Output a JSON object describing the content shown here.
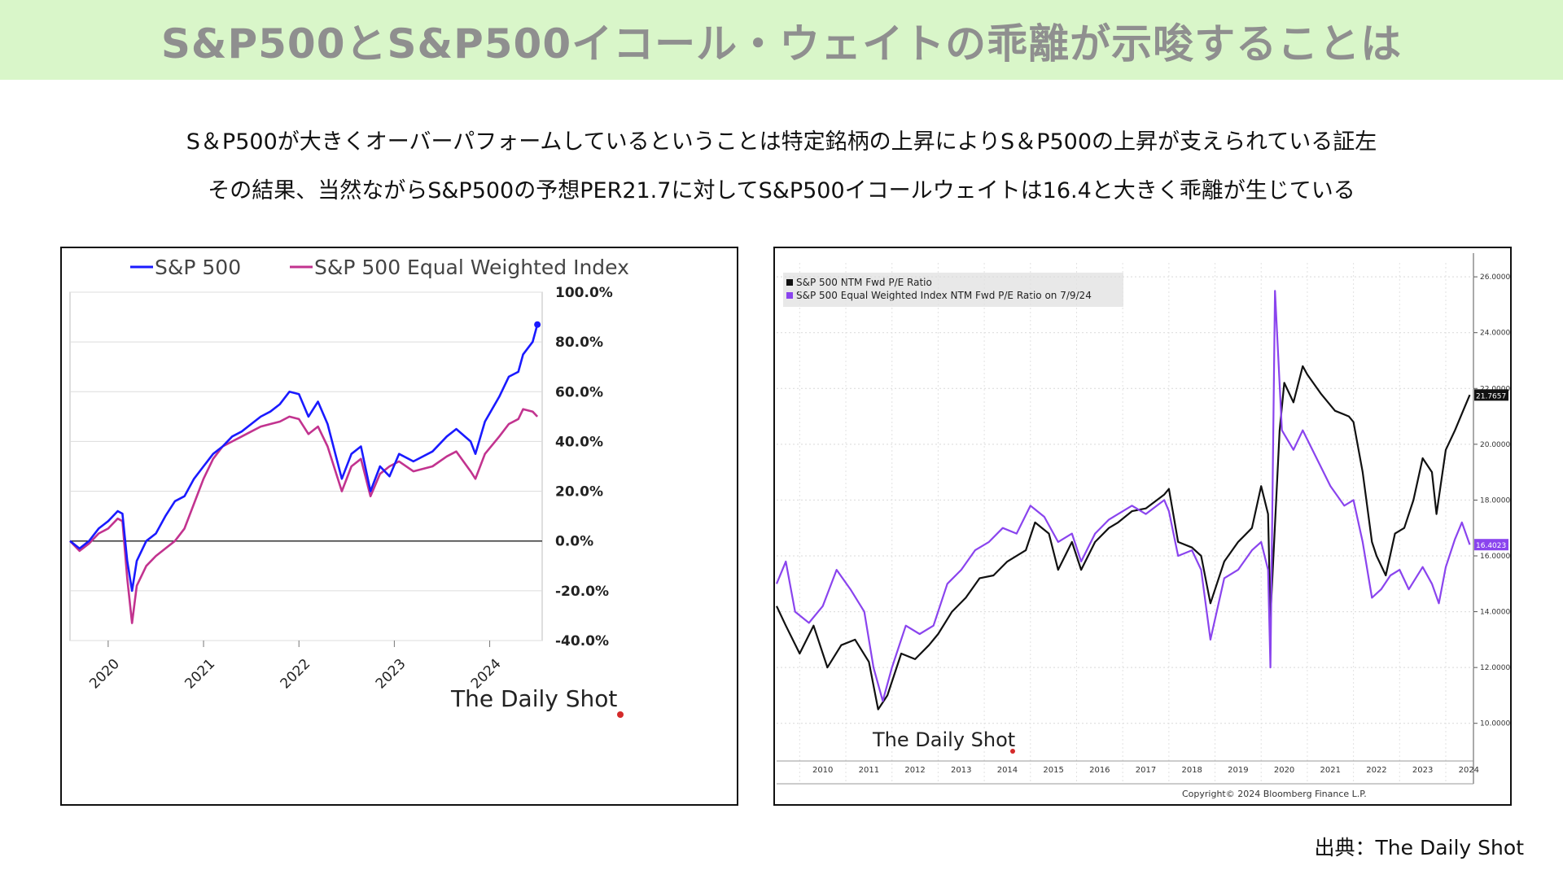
{
  "header": {
    "title": "S&P500とS&P500イコール・ウェイトの乖離が示唆することは"
  },
  "description": {
    "line1": "S＆P500が大きくオーバーパフォームしているということは特定銘柄の上昇によりS＆P500の上昇が支えられている証左",
    "line2": "その結果、当然ながらS&P500の予想PER21.7に対してS&P500イコールウェイトは16.4と大きく乖離が生じている"
  },
  "source": "出典：The Daily Shot",
  "colors": {
    "banner": "#d9f6c9",
    "sp500_left": "#1a1aff",
    "equal_left": "#c2338f",
    "sp500_right": "#111111",
    "equal_right": "#8a44ee"
  },
  "chart_data": [
    {
      "type": "line",
      "watermark": "The Daily Shot",
      "legend_position": "top",
      "grid": true,
      "y_axis_side": "right",
      "yticks": [
        "100.0%",
        "80.0%",
        "60.0%",
        "40.0%",
        "20.0%",
        "0.0%",
        "-20.0%",
        "-40.0%"
      ],
      "ylim": [
        -40,
        100
      ],
      "xlim": [
        2019.6,
        2024.55
      ],
      "xticks": [
        "2020",
        "2021",
        "2022",
        "2023",
        "2024"
      ],
      "series": [
        {
          "name": "S&P 500",
          "color": "#1a1aff",
          "points": [
            [
              2019.6,
              0
            ],
            [
              2019.7,
              -3
            ],
            [
              2019.8,
              0
            ],
            [
              2019.9,
              5
            ],
            [
              2020.0,
              8
            ],
            [
              2020.1,
              12
            ],
            [
              2020.15,
              11
            ],
            [
              2020.2,
              -8
            ],
            [
              2020.25,
              -20
            ],
            [
              2020.3,
              -8
            ],
            [
              2020.4,
              0
            ],
            [
              2020.5,
              3
            ],
            [
              2020.6,
              10
            ],
            [
              2020.7,
              16
            ],
            [
              2020.8,
              18
            ],
            [
              2020.9,
              25
            ],
            [
              2021.0,
              30
            ],
            [
              2021.1,
              35
            ],
            [
              2021.2,
              38
            ],
            [
              2021.3,
              42
            ],
            [
              2021.4,
              44
            ],
            [
              2021.5,
              47
            ],
            [
              2021.6,
              50
            ],
            [
              2021.7,
              52
            ],
            [
              2021.8,
              55
            ],
            [
              2021.9,
              60
            ],
            [
              2022.0,
              59
            ],
            [
              2022.1,
              50
            ],
            [
              2022.2,
              56
            ],
            [
              2022.3,
              47
            ],
            [
              2022.45,
              25
            ],
            [
              2022.55,
              35
            ],
            [
              2022.65,
              38
            ],
            [
              2022.75,
              20
            ],
            [
              2022.85,
              30
            ],
            [
              2022.95,
              26
            ],
            [
              2023.05,
              35
            ],
            [
              2023.2,
              32
            ],
            [
              2023.4,
              36
            ],
            [
              2023.55,
              42
            ],
            [
              2023.65,
              45
            ],
            [
              2023.8,
              40
            ],
            [
              2023.85,
              35
            ],
            [
              2023.95,
              48
            ],
            [
              2024.1,
              58
            ],
            [
              2024.2,
              66
            ],
            [
              2024.3,
              68
            ],
            [
              2024.35,
              75
            ],
            [
              2024.45,
              80
            ],
            [
              2024.5,
              87
            ]
          ]
        },
        {
          "name": "S&P 500 Equal Weighted Index",
          "color": "#c2338f",
          "points": [
            [
              2019.6,
              0
            ],
            [
              2019.7,
              -4
            ],
            [
              2019.8,
              -1
            ],
            [
              2019.9,
              3
            ],
            [
              2020.0,
              5
            ],
            [
              2020.1,
              9
            ],
            [
              2020.15,
              8
            ],
            [
              2020.2,
              -15
            ],
            [
              2020.25,
              -33
            ],
            [
              2020.3,
              -18
            ],
            [
              2020.4,
              -10
            ],
            [
              2020.5,
              -6
            ],
            [
              2020.6,
              -3
            ],
            [
              2020.7,
              0
            ],
            [
              2020.8,
              5
            ],
            [
              2020.9,
              15
            ],
            [
              2021.0,
              25
            ],
            [
              2021.1,
              33
            ],
            [
              2021.2,
              38
            ],
            [
              2021.3,
              40
            ],
            [
              2021.4,
              42
            ],
            [
              2021.5,
              44
            ],
            [
              2021.6,
              46
            ],
            [
              2021.7,
              47
            ],
            [
              2021.8,
              48
            ],
            [
              2021.9,
              50
            ],
            [
              2022.0,
              49
            ],
            [
              2022.1,
              43
            ],
            [
              2022.2,
              46
            ],
            [
              2022.3,
              38
            ],
            [
              2022.45,
              20
            ],
            [
              2022.55,
              30
            ],
            [
              2022.65,
              33
            ],
            [
              2022.75,
              18
            ],
            [
              2022.85,
              27
            ],
            [
              2022.95,
              30
            ],
            [
              2023.05,
              32
            ],
            [
              2023.2,
              28
            ],
            [
              2023.4,
              30
            ],
            [
              2023.55,
              34
            ],
            [
              2023.65,
              36
            ],
            [
              2023.8,
              28
            ],
            [
              2023.85,
              25
            ],
            [
              2023.95,
              35
            ],
            [
              2024.1,
              42
            ],
            [
              2024.2,
              47
            ],
            [
              2024.3,
              49
            ],
            [
              2024.35,
              53
            ],
            [
              2024.45,
              52
            ],
            [
              2024.5,
              50
            ]
          ]
        }
      ]
    },
    {
      "type": "line",
      "watermark": "The Daily Shot",
      "copyright": "Copyright© 2024 Bloomberg Finance L.P.",
      "legend_position": "top-left",
      "grid": true,
      "y_axis_side": "right",
      "yticks": [
        "26.0000",
        "24.0000",
        "22.0000",
        "20.0000",
        "18.0000",
        "16.0000",
        "14.0000",
        "12.0000",
        "10.0000"
      ],
      "ylim": [
        9,
        26.5
      ],
      "xlim": [
        2009.5,
        2024.6
      ],
      "xticks": [
        "2010",
        "2011",
        "2012",
        "2013",
        "2014",
        "2015",
        "2016",
        "2017",
        "2018",
        "2019",
        "2020",
        "2021",
        "2022",
        "2023",
        "2024"
      ],
      "last_value_labels": [
        "21.7657",
        "16.4023"
      ],
      "series": [
        {
          "name": "S&P 500 NTM Fwd P/E Ratio",
          "color": "#111111",
          "last_value": "21.7657",
          "points": [
            [
              2009.5,
              14.2
            ],
            [
              2009.7,
              13.5
            ],
            [
              2010.0,
              12.5
            ],
            [
              2010.3,
              13.5
            ],
            [
              2010.6,
              12.0
            ],
            [
              2010.9,
              12.8
            ],
            [
              2011.2,
              13.0
            ],
            [
              2011.5,
              12.2
            ],
            [
              2011.7,
              10.5
            ],
            [
              2011.9,
              11.0
            ],
            [
              2012.2,
              12.5
            ],
            [
              2012.5,
              12.3
            ],
            [
              2012.8,
              12.8
            ],
            [
              2013.0,
              13.2
            ],
            [
              2013.3,
              14.0
            ],
            [
              2013.6,
              14.5
            ],
            [
              2013.9,
              15.2
            ],
            [
              2014.2,
              15.3
            ],
            [
              2014.5,
              15.8
            ],
            [
              2014.9,
              16.2
            ],
            [
              2015.1,
              17.2
            ],
            [
              2015.4,
              16.8
            ],
            [
              2015.6,
              15.5
            ],
            [
              2015.9,
              16.5
            ],
            [
              2016.1,
              15.5
            ],
            [
              2016.4,
              16.5
            ],
            [
              2016.7,
              17.0
            ],
            [
              2016.9,
              17.2
            ],
            [
              2017.2,
              17.6
            ],
            [
              2017.5,
              17.7
            ],
            [
              2017.9,
              18.2
            ],
            [
              2018.0,
              18.4
            ],
            [
              2018.2,
              16.5
            ],
            [
              2018.5,
              16.3
            ],
            [
              2018.7,
              16.0
            ],
            [
              2018.9,
              14.3
            ],
            [
              2019.2,
              15.8
            ],
            [
              2019.5,
              16.5
            ],
            [
              2019.8,
              17.0
            ],
            [
              2020.0,
              18.5
            ],
            [
              2020.15,
              17.5
            ],
            [
              2020.2,
              13.8
            ],
            [
              2020.4,
              20.5
            ],
            [
              2020.5,
              22.2
            ],
            [
              2020.7,
              21.5
            ],
            [
              2020.9,
              22.8
            ],
            [
              2021.0,
              22.5
            ],
            [
              2021.3,
              21.8
            ],
            [
              2021.6,
              21.2
            ],
            [
              2021.9,
              21.0
            ],
            [
              2022.0,
              20.8
            ],
            [
              2022.2,
              19.0
            ],
            [
              2022.4,
              16.5
            ],
            [
              2022.5,
              16.0
            ],
            [
              2022.7,
              15.3
            ],
            [
              2022.9,
              16.8
            ],
            [
              2023.1,
              17.0
            ],
            [
              2023.3,
              18.0
            ],
            [
              2023.5,
              19.5
            ],
            [
              2023.7,
              19.0
            ],
            [
              2023.8,
              17.5
            ],
            [
              2024.0,
              19.8
            ],
            [
              2024.2,
              20.5
            ],
            [
              2024.4,
              21.3
            ],
            [
              2024.52,
              21.77
            ]
          ]
        },
        {
          "name": "S&P 500 Equal Weighted Index NTM Fwd P/E Ratio on 7/9/24",
          "color": "#8a44ee",
          "last_value": "16.4023",
          "points": [
            [
              2009.5,
              15.0
            ],
            [
              2009.7,
              15.8
            ],
            [
              2009.9,
              14.0
            ],
            [
              2010.2,
              13.6
            ],
            [
              2010.5,
              14.2
            ],
            [
              2010.8,
              15.5
            ],
            [
              2011.1,
              14.8
            ],
            [
              2011.4,
              14.0
            ],
            [
              2011.6,
              12.0
            ],
            [
              2011.8,
              10.8
            ],
            [
              2012.0,
              12.0
            ],
            [
              2012.3,
              13.5
            ],
            [
              2012.6,
              13.2
            ],
            [
              2012.9,
              13.5
            ],
            [
              2013.2,
              15.0
            ],
            [
              2013.5,
              15.5
            ],
            [
              2013.8,
              16.2
            ],
            [
              2014.1,
              16.5
            ],
            [
              2014.4,
              17.0
            ],
            [
              2014.7,
              16.8
            ],
            [
              2015.0,
              17.8
            ],
            [
              2015.3,
              17.4
            ],
            [
              2015.6,
              16.5
            ],
            [
              2015.9,
              16.8
            ],
            [
              2016.1,
              15.8
            ],
            [
              2016.4,
              16.8
            ],
            [
              2016.7,
              17.3
            ],
            [
              2016.9,
              17.5
            ],
            [
              2017.2,
              17.8
            ],
            [
              2017.5,
              17.5
            ],
            [
              2017.9,
              18.0
            ],
            [
              2018.0,
              17.6
            ],
            [
              2018.2,
              16.0
            ],
            [
              2018.5,
              16.2
            ],
            [
              2018.7,
              15.5
            ],
            [
              2018.9,
              13.0
            ],
            [
              2019.2,
              15.2
            ],
            [
              2019.5,
              15.5
            ],
            [
              2019.8,
              16.2
            ],
            [
              2020.0,
              16.5
            ],
            [
              2020.15,
              15.5
            ],
            [
              2020.2,
              12.0
            ],
            [
              2020.3,
              25.5
            ],
            [
              2020.45,
              20.5
            ],
            [
              2020.7,
              19.8
            ],
            [
              2020.9,
              20.5
            ],
            [
              2021.2,
              19.5
            ],
            [
              2021.5,
              18.5
            ],
            [
              2021.8,
              17.8
            ],
            [
              2022.0,
              18.0
            ],
            [
              2022.2,
              16.5
            ],
            [
              2022.4,
              14.5
            ],
            [
              2022.6,
              14.8
            ],
            [
              2022.8,
              15.3
            ],
            [
              2023.0,
              15.5
            ],
            [
              2023.2,
              14.8
            ],
            [
              2023.5,
              15.6
            ],
            [
              2023.7,
              15.0
            ],
            [
              2023.85,
              14.3
            ],
            [
              2024.0,
              15.6
            ],
            [
              2024.2,
              16.6
            ],
            [
              2024.35,
              17.2
            ],
            [
              2024.52,
              16.4
            ]
          ]
        }
      ]
    }
  ]
}
